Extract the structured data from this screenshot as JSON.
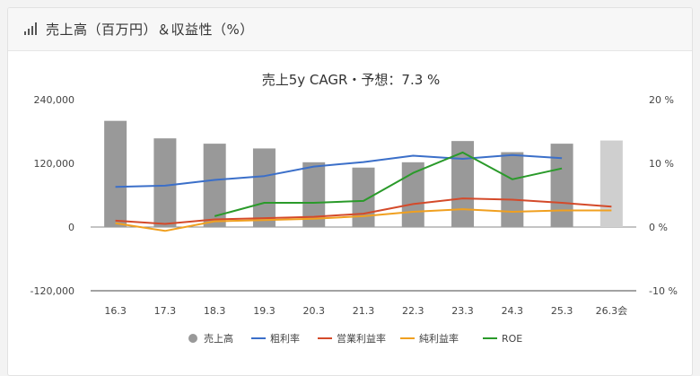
{
  "card": {
    "title": "売上高（百万円）＆収益性（%）"
  },
  "chart_data": {
    "type": "bar",
    "title": "売上5y CAGR・予想：7.3 %",
    "categories": [
      "16.3",
      "17.3",
      "18.3",
      "19.3",
      "20.3",
      "21.3",
      "22.3",
      "23.3",
      "24.3",
      "25.3",
      "26.3会"
    ],
    "left_axis": {
      "ylim": [
        -120000,
        240000
      ],
      "ticks": [
        "240,000",
        "120,000",
        "0",
        "-120,000"
      ]
    },
    "right_axis": {
      "ylim": [
        -10,
        20
      ],
      "ticks": [
        "20 %",
        "10 %",
        "0 %",
        "-10 %"
      ]
    },
    "series": [
      {
        "name": "売上高",
        "kind": "bar",
        "axis": "left",
        "color": "#999999",
        "forecast_color": "#cfcfcf",
        "values": [
          200000,
          167000,
          157000,
          148000,
          122000,
          112000,
          122000,
          162000,
          141000,
          157000,
          163000
        ]
      },
      {
        "name": "粗利率",
        "kind": "line",
        "axis": "right",
        "color": "#3b6fc9",
        "values": [
          6.3,
          6.5,
          7.4,
          8.0,
          9.5,
          10.2,
          11.2,
          10.7,
          11.3,
          10.8,
          null
        ]
      },
      {
        "name": "営業利益率",
        "kind": "line",
        "axis": "right",
        "color": "#d44a2a",
        "values": [
          1.0,
          0.5,
          1.2,
          1.4,
          1.6,
          2.1,
          3.6,
          4.5,
          4.3,
          3.8,
          3.2
        ]
      },
      {
        "name": "純利益率",
        "kind": "line",
        "axis": "right",
        "color": "#f0a020",
        "values": [
          0.6,
          -0.6,
          0.9,
          1.1,
          1.3,
          1.7,
          2.4,
          2.8,
          2.4,
          2.6,
          2.6
        ]
      },
      {
        "name": "ROE",
        "kind": "line",
        "axis": "right",
        "color": "#2a9a2a",
        "values": [
          null,
          null,
          1.7,
          3.8,
          3.8,
          4.1,
          8.5,
          11.7,
          7.5,
          9.2,
          null
        ]
      }
    ],
    "legend_position": "bottom"
  }
}
